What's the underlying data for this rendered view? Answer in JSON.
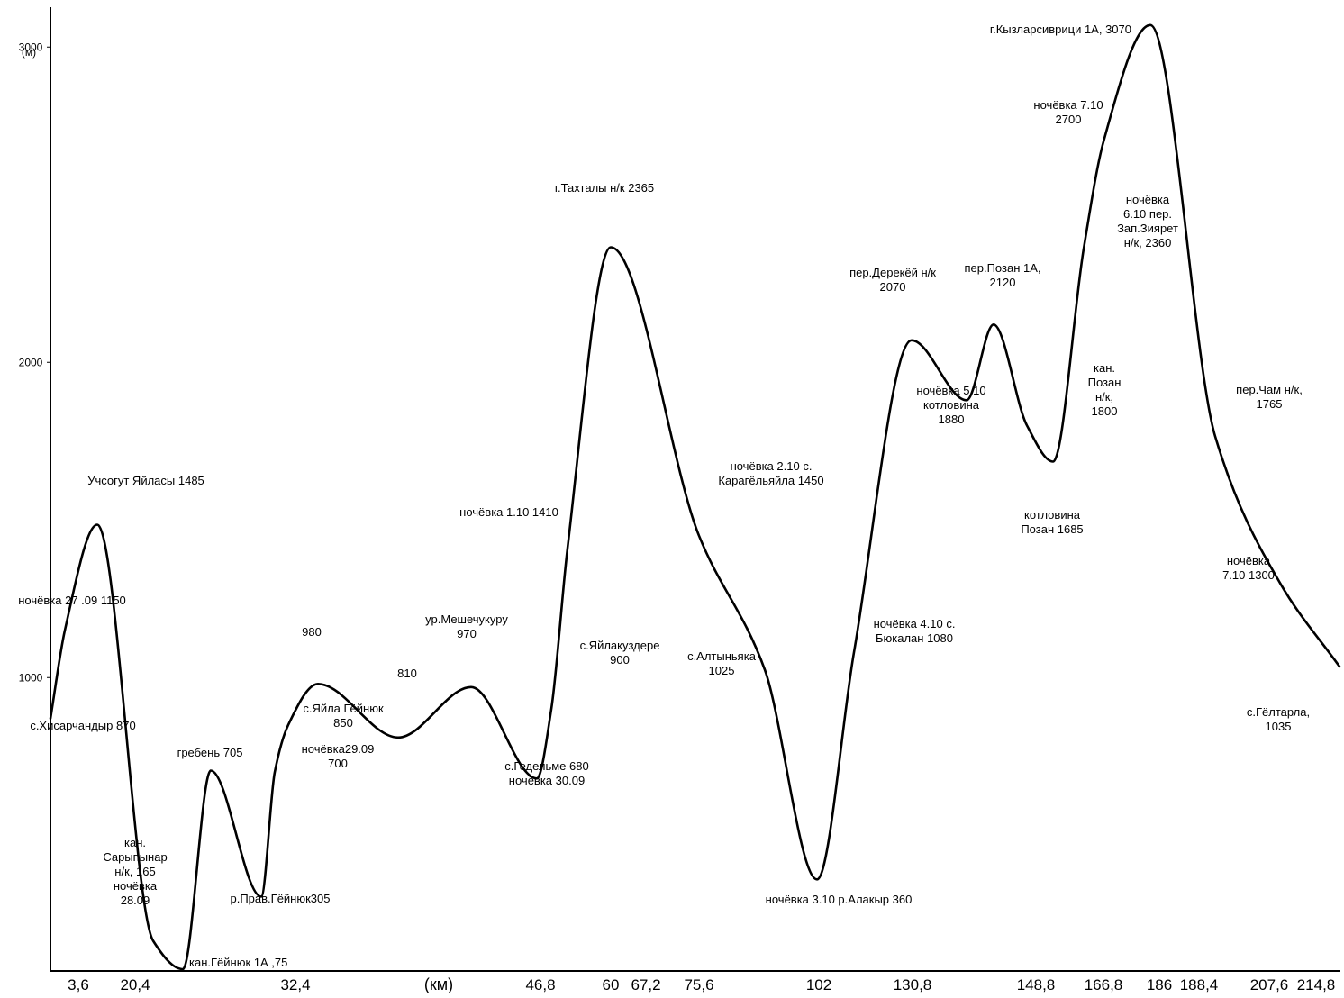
{
  "chart_data": {
    "type": "line",
    "title": "",
    "xlabel": "(км)",
    "ylabel": "(м)",
    "ylim": [
      75,
      3070
    ],
    "grid": false,
    "y_ticks": [
      {
        "value": 1000,
        "label": "1000"
      },
      {
        "value": 2000,
        "label": "2000"
      },
      {
        "value": 3000,
        "label": "3000"
      }
    ],
    "x_tick_labels": [
      "3,6",
      "20,4",
      "32,4",
      "46,8",
      "60",
      "67,2",
      "75,6",
      "102",
      "130,8",
      "148,8",
      "166,8",
      "186",
      "188,4",
      "207,6",
      "214,8"
    ],
    "series": [
      {
        "name": "",
        "points": [
          {
            "label": "с.Хисарчандыр 870",
            "value": 870
          },
          {
            "label": "ночёвка 27 .09 1150",
            "value": 1150
          },
          {
            "label": "Учсогут Яйласы 1485",
            "value": 1485
          },
          {
            "label": "кан. Сарыпынар н/к, 165 ночёвка 28.09",
            "value": 165
          },
          {
            "label": "кан.Гёйнюк 1А ,75",
            "value": 75
          },
          {
            "label": "гребень 705",
            "value": 705
          },
          {
            "label": "р.Прав.Гёйнюк305",
            "value": 305
          },
          {
            "label": "ночёвка29.09 700",
            "value": 700
          },
          {
            "label": "с.Яйла Гёйнюк 850",
            "value": 850
          },
          {
            "label": "980",
            "value": 980
          },
          {
            "label": "810",
            "value": 810
          },
          {
            "label": "ур.Мешечукуру 970",
            "value": 970
          },
          {
            "label": "с.Гедельме 680 ночёвка 30.09",
            "value": 680
          },
          {
            "label": "с.Яйлакуздере 900",
            "value": 900
          },
          {
            "label": "ночёвка 1.10 1410",
            "value": 1410
          },
          {
            "label": "г.Тахталы н/к 2365",
            "value": 2365
          },
          {
            "label": "ночёвка 2.10 с. Карагёльяйла 1450",
            "value": 1450
          },
          {
            "label": "с.Алтыньяка 1025",
            "value": 1025
          },
          {
            "label": "ночёвка 3.10 р.Алакыр 360",
            "value": 360
          },
          {
            "label": "ночёвка 4.10 с. Бюкалан 1080",
            "value": 1080
          },
          {
            "label": "пер.Дерекёй н/к 2070",
            "value": 2070
          },
          {
            "label": "ночёвка 5.10 котловина 1880",
            "value": 1880
          },
          {
            "label": "пер.Позан 1А, 2120",
            "value": 2120
          },
          {
            "label": "кан. Позан н/к, 1800",
            "value": 1800
          },
          {
            "label": "котловина Позан 1685",
            "value": 1685
          },
          {
            "label": "ночёвка 6.10 пер. Зап.Зиярет н/к, 2360",
            "value": 2360
          },
          {
            "label": "ночёвка 7.10 2700",
            "value": 2700
          },
          {
            "label": "г.Кызларсиврици 1А, 3070",
            "value": 3070
          },
          {
            "label": "пер.Чам н/к, 1765",
            "value": 1765
          },
          {
            "label": "ночёвка 7.10 1300",
            "value": 1300
          },
          {
            "label": "с.Гёлтарла, 1035",
            "value": 1035
          }
        ]
      }
    ],
    "annotations": [
      {
        "lines": [
          "г.Кызларсиврици 1А, 3070"
        ],
        "anchor": "end"
      },
      {
        "lines": [
          "ночёвка 7.10",
          "2700"
        ],
        "anchor": "middle"
      },
      {
        "lines": [
          "г.Тахталы н/к 2365"
        ],
        "anchor": "middle"
      },
      {
        "lines": [
          "ночёвка",
          "6.10 пер.",
          "Зап.Зиярет",
          "н/к, 2360"
        ],
        "anchor": "middle"
      },
      {
        "lines": [
          "пер.Дерекёй н/к",
          "2070"
        ],
        "anchor": "middle"
      },
      {
        "lines": [
          "пер.Позан 1А,",
          "2120"
        ],
        "anchor": "middle"
      },
      {
        "lines": [
          "кан.",
          "Позан",
          "н/к,",
          "1800"
        ],
        "anchor": "middle"
      },
      {
        "lines": [
          "ночёвка 5.10",
          "котловина",
          "1880"
        ],
        "anchor": "middle"
      },
      {
        "lines": [
          "пер.Чам н/к,",
          "1765"
        ],
        "anchor": "middle"
      },
      {
        "lines": [
          "ночёвка 2.10 с.",
          "Карагёльяйла 1450"
        ],
        "anchor": "middle"
      },
      {
        "lines": [
          "Учсогут Яйласы 1485"
        ],
        "anchor": "middle"
      },
      {
        "lines": [
          "ночёвка 1.10 1410"
        ],
        "anchor": "middle"
      },
      {
        "lines": [
          "котловина",
          "Позан 1685"
        ],
        "anchor": "middle"
      },
      {
        "lines": [
          "ночёвка",
          "7.10 1300"
        ],
        "anchor": "middle"
      },
      {
        "lines": [
          "ночёвка 27 .09 1150"
        ],
        "anchor": "middle"
      },
      {
        "lines": [
          "ур.Мешечукуру",
          "970"
        ],
        "anchor": "middle"
      },
      {
        "lines": [
          "980"
        ],
        "anchor": "middle"
      },
      {
        "lines": [
          "ночёвка 4.10 с.",
          "Бюкалан 1080"
        ],
        "anchor": "middle"
      },
      {
        "lines": [
          "с.Яйлакуздере",
          "900"
        ],
        "anchor": "middle"
      },
      {
        "lines": [
          "с.Алтыньяка",
          "1025"
        ],
        "anchor": "middle"
      },
      {
        "lines": [
          "810"
        ],
        "anchor": "middle"
      },
      {
        "lines": [
          "с.Яйла Гёйнюк",
          "850"
        ],
        "anchor": "middle"
      },
      {
        "lines": [
          "с.Гёлтарла,",
          "1035"
        ],
        "anchor": "middle"
      },
      {
        "lines": [
          "с.Хисарчандыр 870"
        ],
        "anchor": "middle"
      },
      {
        "lines": [
          "гребень 705"
        ],
        "anchor": "middle"
      },
      {
        "lines": [
          "ночёвка29.09",
          "700"
        ],
        "anchor": "middle"
      },
      {
        "lines": [
          "с.Гедельме 680",
          "ночёвка 30.09"
        ],
        "anchor": "middle"
      },
      {
        "lines": [
          "кан.",
          "Сарыпынар",
          "н/к, 165",
          "ночёвка",
          "28.09"
        ],
        "anchor": "middle"
      },
      {
        "lines": [
          "р.Прав.Гёйнюк305"
        ],
        "anchor": "middle"
      },
      {
        "lines": [
          "ночёвка 3.10 р.Алакыр 360"
        ],
        "anchor": "middle"
      },
      {
        "lines": [
          "кан.Гёйнюк 1А ,75"
        ],
        "anchor": "start"
      }
    ]
  }
}
